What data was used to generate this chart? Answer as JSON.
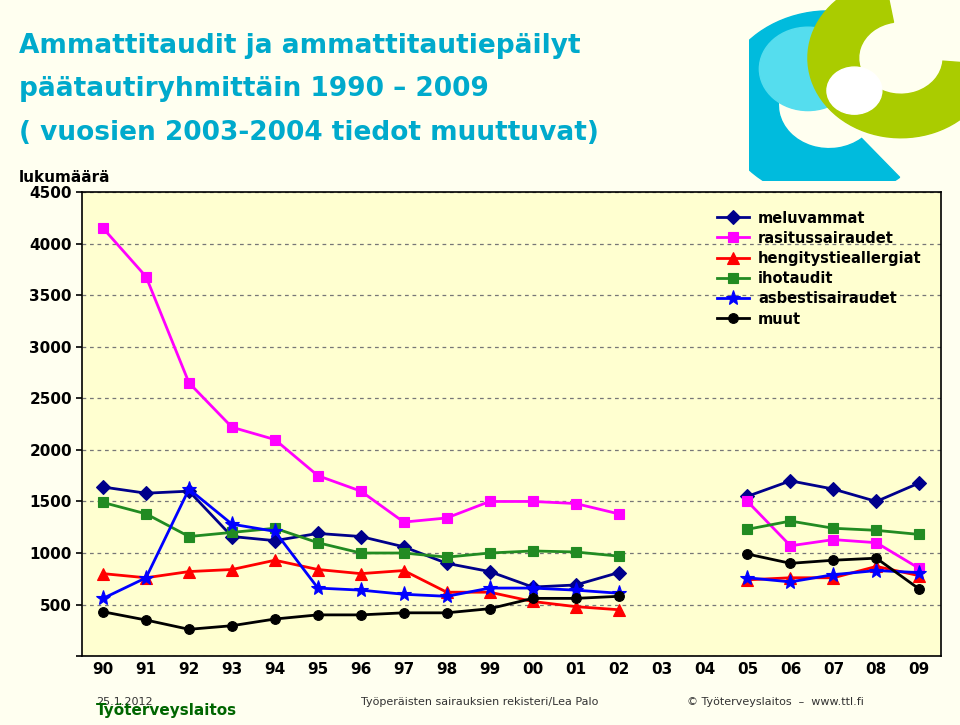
{
  "title_line1": "Ammattitaudit ja ammattitautiepäilyt",
  "title_line2": "päätautiryhmittäin 1990 – 2009",
  "title_line3": "( vuosien 2003-2004 tiedot muuttuvat)",
  "ylabel": "lukumäärä",
  "title_color": "#00AACC",
  "bg_color": "#FFFFF0",
  "plot_bg_color": "#FFFFD0",
  "year_labels": [
    "90",
    "91",
    "92",
    "93",
    "94",
    "95",
    "96",
    "97",
    "98",
    "99",
    "00",
    "01",
    "02",
    "03",
    "04",
    "05",
    "06",
    "07",
    "08",
    "09"
  ],
  "meluvammat": [
    1640,
    1580,
    1600,
    1160,
    1120,
    1190,
    1160,
    1060,
    900,
    820,
    670,
    690,
    810,
    null,
    null,
    1550,
    1700,
    1620,
    1500,
    1680
  ],
  "rasitussairaudet": [
    4150,
    3680,
    2650,
    2220,
    2100,
    1750,
    1600,
    1300,
    1340,
    1500,
    1500,
    1480,
    1380,
    null,
    null,
    1500,
    1070,
    1130,
    1100,
    850
  ],
  "hengitystieallergiat": [
    800,
    760,
    820,
    840,
    930,
    840,
    800,
    830,
    620,
    620,
    530,
    480,
    450,
    null,
    null,
    740,
    760,
    760,
    870,
    780
  ],
  "ihotaudit": [
    1490,
    1380,
    1160,
    1200,
    1240,
    1100,
    1000,
    1000,
    960,
    1000,
    1020,
    1010,
    970,
    null,
    null,
    1230,
    1310,
    1240,
    1220,
    1180
  ],
  "asbestisairaudet": [
    560,
    760,
    1620,
    1280,
    1210,
    660,
    640,
    600,
    580,
    660,
    660,
    640,
    610,
    null,
    null,
    760,
    720,
    790,
    830,
    810
  ],
  "muut": [
    430,
    350,
    260,
    295,
    360,
    400,
    400,
    420,
    420,
    460,
    560,
    560,
    580,
    null,
    null,
    990,
    900,
    930,
    950,
    650
  ],
  "ylim": [
    0,
    4500
  ],
  "yticks": [
    0,
    500,
    1000,
    1500,
    2000,
    2500,
    3000,
    3500,
    4000,
    4500
  ],
  "footer_left": "25.1.2012",
  "footer_mid": "Työperäisten sairauksien rekisteri/Lea Palo",
  "footer_right": "© Työterveyslaitos  –  www.ttl.fi"
}
